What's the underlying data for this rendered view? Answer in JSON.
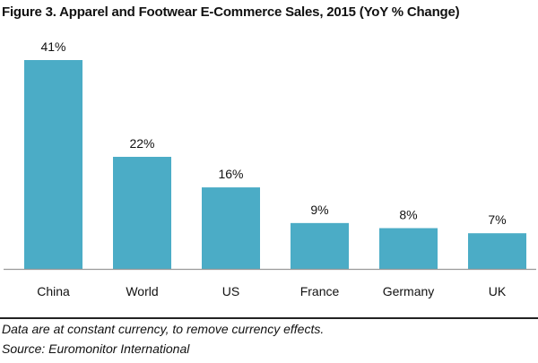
{
  "chart_data": {
    "type": "bar",
    "title": "Figure 3. Apparel and Footwear E-Commerce Sales, 2015 (YoY % Change)",
    "categories": [
      "China",
      "World",
      "US",
      "France",
      "Germany",
      "UK"
    ],
    "values": [
      41,
      22,
      16,
      9,
      8,
      7
    ],
    "data_labels": [
      "41%",
      "22%",
      "16%",
      "9%",
      "8%",
      "7%"
    ],
    "xlabel": "",
    "ylabel": "",
    "ylim": [
      0,
      41
    ],
    "grid": false,
    "bar_color": "#4BACC6"
  },
  "footnotes": {
    "note": "Data are at constant currency, to remove currency effects.",
    "source": "Source: Euromonitor International"
  }
}
